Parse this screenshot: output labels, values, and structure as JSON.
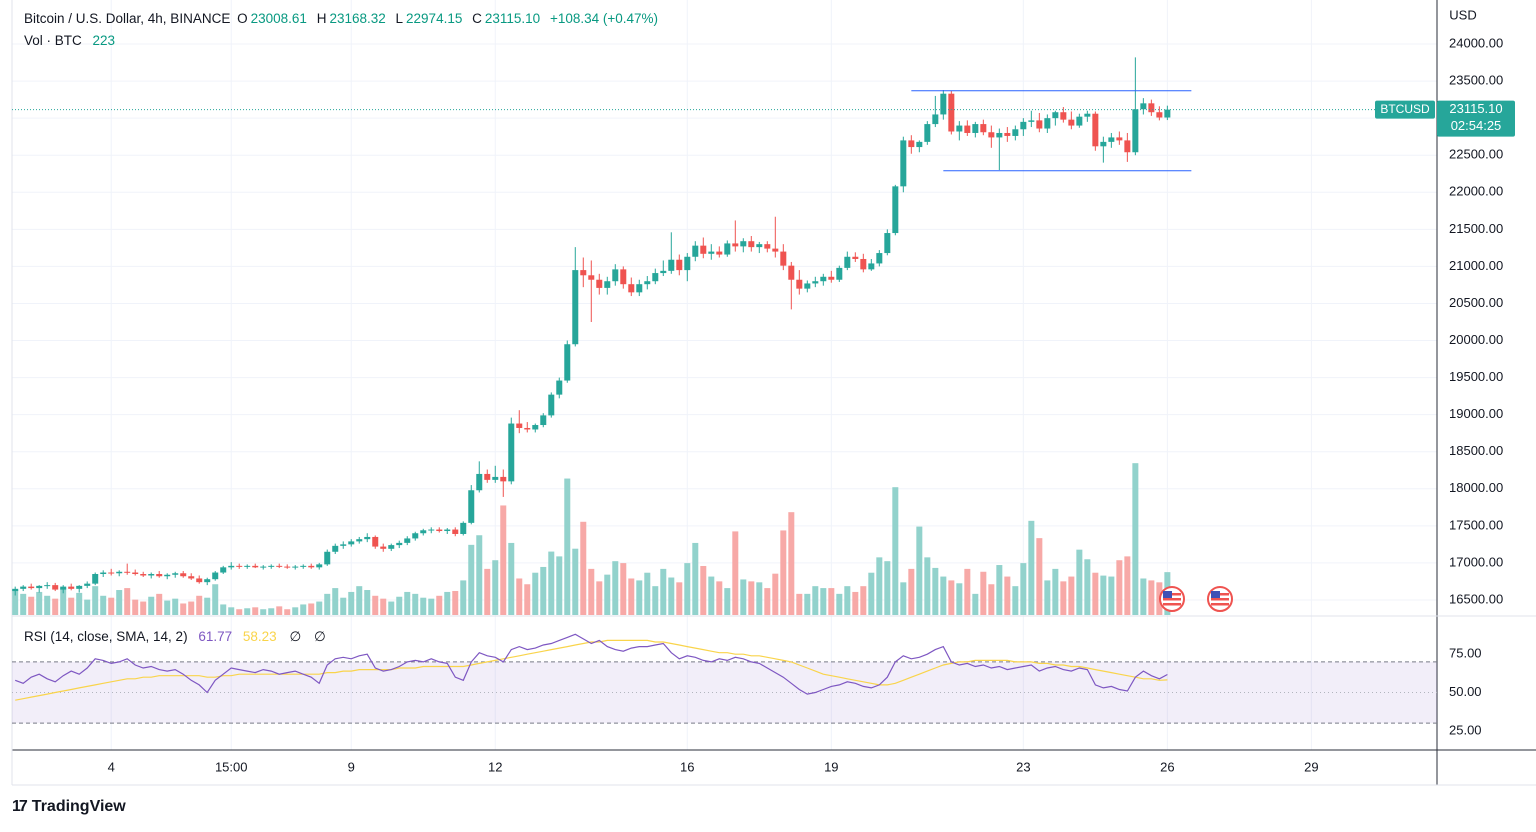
{
  "chart_data": {
    "type": "candlestick",
    "title": "Bitcoin / U.S. Dollar, 4h, BINANCE",
    "ohlc_legend": [
      {
        "label": "O",
        "value": "23008.61"
      },
      {
        "label": "H",
        "value": "23168.32"
      },
      {
        "label": "L",
        "value": "22974.15"
      },
      {
        "label": "C",
        "value": "23115.10"
      }
    ],
    "change": "+108.34 (+0.47%)",
    "currency": "USD",
    "price_tag": {
      "symbol": "BTCUSD",
      "price": "23115.10",
      "countdown": "02:54:25"
    },
    "brand": "TradingView",
    "up_color": "#26a69a",
    "down_color": "#ef5350",
    "volume_up_color": "#92d2cc",
    "volume_down_color": "#f7a9a7",
    "grid": true,
    "xlim": [
      -0.4,
      177.7
    ],
    "xticks": [
      {
        "value": 12,
        "label": "4"
      },
      {
        "value": 27,
        "label": "15:00"
      },
      {
        "value": 42,
        "label": "9"
      },
      {
        "value": 60,
        "label": "12"
      },
      {
        "value": 84,
        "label": "16"
      },
      {
        "value": 102,
        "label": "19"
      },
      {
        "value": 126,
        "label": "23"
      },
      {
        "value": 144,
        "label": "26"
      },
      {
        "value": 162,
        "label": "29"
      }
    ],
    "ylim": [
      16297,
      24594
    ],
    "yticks": [
      {
        "value": 16500,
        "label": "16500.00"
      },
      {
        "value": 17000,
        "label": "17000.00"
      },
      {
        "value": 17500,
        "label": "17500.00"
      },
      {
        "value": 18000,
        "label": "18000.00"
      },
      {
        "value": 18500,
        "label": "18500.00"
      },
      {
        "value": 19000,
        "label": "19000.00"
      },
      {
        "value": 19500,
        "label": "19500.00"
      },
      {
        "value": 20000,
        "label": "20000.00"
      },
      {
        "value": 20500,
        "label": "20500.00"
      },
      {
        "value": 21000,
        "label": "21000.00"
      },
      {
        "value": 21500,
        "label": "21500.00"
      },
      {
        "value": 22000,
        "label": "22000.00"
      },
      {
        "value": 22500,
        "label": "22500.00"
      },
      {
        "value": 23000,
        "label": "23000.00"
      },
      {
        "value": 23500,
        "label": "23500.00"
      },
      {
        "value": 24000,
        "label": "24000.00"
      }
    ],
    "drawings": [
      {
        "price": 23370,
        "from": 112,
        "to": 147,
        "color": "#2962ff"
      },
      {
        "price": 22290,
        "from": 116,
        "to": 147,
        "color": "#2962ff"
      }
    ],
    "candles": [
      [
        16620,
        16680,
        16560,
        16650
      ],
      [
        16650,
        16700,
        16620,
        16680
      ],
      [
        16680,
        16720,
        16640,
        16660
      ],
      [
        16660,
        16700,
        16600,
        16690
      ],
      [
        16690,
        16740,
        16650,
        16700
      ],
      [
        16700,
        16730,
        16620,
        16640
      ],
      [
        16640,
        16700,
        16590,
        16680
      ],
      [
        16680,
        16720,
        16630,
        16650
      ],
      [
        16650,
        16700,
        16600,
        16690
      ],
      [
        16690,
        16750,
        16660,
        16720
      ],
      [
        16720,
        16870,
        16700,
        16850
      ],
      [
        16850,
        16900,
        16810,
        16870
      ],
      [
        16870,
        16920,
        16830,
        16860
      ],
      [
        16860,
        16900,
        16820,
        16880
      ],
      [
        16880,
        16990,
        16840,
        16870
      ],
      [
        16870,
        16910,
        16830,
        16850
      ],
      [
        16850,
        16880,
        16810,
        16830
      ],
      [
        16830,
        16870,
        16790,
        16850
      ],
      [
        16850,
        16890,
        16800,
        16820
      ],
      [
        16820,
        16860,
        16780,
        16840
      ],
      [
        16840,
        16880,
        16800,
        16860
      ],
      [
        16860,
        16890,
        16800,
        16820
      ],
      [
        16820,
        16860,
        16770,
        16790
      ],
      [
        16790,
        16830,
        16720,
        16740
      ],
      [
        16740,
        16800,
        16700,
        16780
      ],
      [
        16780,
        16890,
        16760,
        16870
      ],
      [
        16870,
        16960,
        16850,
        16940
      ],
      [
        16940,
        17010,
        16910,
        16960
      ],
      [
        16960,
        16990,
        16920,
        16950
      ],
      [
        16950,
        16980,
        16920,
        16960
      ],
      [
        16960,
        16990,
        16930,
        16940
      ],
      [
        16940,
        16970,
        16910,
        16950
      ],
      [
        16950,
        16980,
        16920,
        16960
      ],
      [
        16960,
        16990,
        16930,
        16950
      ],
      [
        16950,
        16980,
        16920,
        16940
      ],
      [
        16940,
        16970,
        16910,
        16950
      ],
      [
        16950,
        16980,
        16920,
        16960
      ],
      [
        16960,
        16990,
        16920,
        16940
      ],
      [
        16940,
        17000,
        16910,
        16980
      ],
      [
        16980,
        17180,
        16960,
        17150
      ],
      [
        17150,
        17260,
        17120,
        17230
      ],
      [
        17230,
        17290,
        17190,
        17250
      ],
      [
        17250,
        17320,
        17220,
        17290
      ],
      [
        17290,
        17350,
        17260,
        17320
      ],
      [
        17320,
        17400,
        17280,
        17350
      ],
      [
        17350,
        17370,
        17190,
        17220
      ],
      [
        17220,
        17260,
        17150,
        17190
      ],
      [
        17190,
        17260,
        17160,
        17240
      ],
      [
        17240,
        17300,
        17200,
        17270
      ],
      [
        17270,
        17360,
        17240,
        17330
      ],
      [
        17330,
        17420,
        17300,
        17400
      ],
      [
        17400,
        17460,
        17370,
        17440
      ],
      [
        17440,
        17480,
        17400,
        17450
      ],
      [
        17450,
        17480,
        17410,
        17430
      ],
      [
        17430,
        17470,
        17390,
        17450
      ],
      [
        17450,
        17480,
        17360,
        17390
      ],
      [
        17390,
        17560,
        17370,
        17540
      ],
      [
        17540,
        18050,
        17520,
        17980
      ],
      [
        17980,
        18370,
        17950,
        18200
      ],
      [
        18200,
        18260,
        18080,
        18120
      ],
      [
        18120,
        18310,
        18080,
        18160
      ],
      [
        18160,
        18260,
        17890,
        18100
      ],
      [
        18100,
        18960,
        18060,
        18880
      ],
      [
        18880,
        19060,
        18750,
        18820
      ],
      [
        18820,
        18900,
        18760,
        18800
      ],
      [
        18800,
        18880,
        18760,
        18860
      ],
      [
        18860,
        19020,
        18830,
        18990
      ],
      [
        18990,
        19300,
        18960,
        19270
      ],
      [
        19270,
        19500,
        19220,
        19460
      ],
      [
        19460,
        20000,
        19430,
        19950
      ],
      [
        19950,
        21260,
        19920,
        20950
      ],
      [
        20950,
        21120,
        20720,
        20880
      ],
      [
        20880,
        21080,
        20250,
        20820
      ],
      [
        20820,
        20900,
        20620,
        20710
      ],
      [
        20710,
        20860,
        20620,
        20800
      ],
      [
        20800,
        21030,
        20740,
        20960
      ],
      [
        20960,
        21000,
        20700,
        20760
      ],
      [
        20760,
        20850,
        20600,
        20650
      ],
      [
        20650,
        20820,
        20600,
        20760
      ],
      [
        20760,
        20870,
        20690,
        20800
      ],
      [
        20800,
        20970,
        20760,
        20910
      ],
      [
        20910,
        21080,
        20870,
        20940
      ],
      [
        20940,
        21460,
        20900,
        21090
      ],
      [
        21090,
        21160,
        20880,
        20950
      ],
      [
        20950,
        21180,
        20800,
        21130
      ],
      [
        21130,
        21340,
        21070,
        21280
      ],
      [
        21280,
        21390,
        21110,
        21170
      ],
      [
        21170,
        21300,
        21090,
        21200
      ],
      [
        21200,
        21270,
        21120,
        21160
      ],
      [
        21160,
        21350,
        21130,
        21310
      ],
      [
        21310,
        21620,
        21200,
        21270
      ],
      [
        21270,
        21380,
        21190,
        21340
      ],
      [
        21340,
        21410,
        21200,
        21260
      ],
      [
        21260,
        21330,
        21180,
        21300
      ],
      [
        21300,
        21340,
        21190,
        21240
      ],
      [
        21240,
        21670,
        21120,
        21200
      ],
      [
        21200,
        21300,
        20950,
        21010
      ],
      [
        21010,
        21060,
        20420,
        20820
      ],
      [
        20820,
        20950,
        20620,
        20700
      ],
      [
        20700,
        20810,
        20650,
        20770
      ],
      [
        20770,
        20860,
        20720,
        20800
      ],
      [
        20800,
        20900,
        20740,
        20860
      ],
      [
        20860,
        20940,
        20780,
        20820
      ],
      [
        20820,
        21010,
        20790,
        20980
      ],
      [
        20980,
        21200,
        20950,
        21130
      ],
      [
        21130,
        21190,
        21060,
        21100
      ],
      [
        21100,
        21170,
        20920,
        20960
      ],
      [
        20960,
        21100,
        20940,
        21040
      ],
      [
        21040,
        21220,
        21000,
        21180
      ],
      [
        21180,
        21500,
        21150,
        21450
      ],
      [
        21450,
        22100,
        21420,
        22080
      ],
      [
        22080,
        22750,
        22000,
        22700
      ],
      [
        22700,
        22770,
        22520,
        22610
      ],
      [
        22610,
        22700,
        22540,
        22680
      ],
      [
        22680,
        22960,
        22640,
        22920
      ],
      [
        22920,
        23300,
        22880,
        23050
      ],
      [
        23050,
        23380,
        22980,
        23330
      ],
      [
        23330,
        23370,
        22780,
        22820
      ],
      [
        22820,
        22960,
        22700,
        22900
      ],
      [
        22900,
        22970,
        22760,
        22800
      ],
      [
        22800,
        22950,
        22740,
        22920
      ],
      [
        22920,
        22980,
        22770,
        22810
      ],
      [
        22810,
        22900,
        22600,
        22740
      ],
      [
        22740,
        22860,
        22300,
        22800
      ],
      [
        22800,
        22880,
        22680,
        22760
      ],
      [
        22760,
        22900,
        22700,
        22850
      ],
      [
        22850,
        23000,
        22760,
        22950
      ],
      [
        22950,
        23100,
        22880,
        22970
      ],
      [
        22970,
        23070,
        22810,
        22860
      ],
      [
        22860,
        23050,
        22800,
        23000
      ],
      [
        23000,
        23100,
        22900,
        23080
      ],
      [
        23080,
        23150,
        22940,
        22980
      ],
      [
        22980,
        23090,
        22850,
        22900
      ],
      [
        22900,
        23060,
        22870,
        23020
      ],
      [
        23020,
        23100,
        22950,
        23060
      ],
      [
        23060,
        23090,
        22560,
        22620
      ],
      [
        22620,
        22750,
        22400,
        22680
      ],
      [
        22680,
        22800,
        22600,
        22740
      ],
      [
        22740,
        22820,
        22640,
        22700
      ],
      [
        22700,
        22800,
        22410,
        22540
      ],
      [
        22540,
        23820,
        22500,
        23120
      ],
      [
        23120,
        23270,
        23050,
        23200
      ],
      [
        23200,
        23250,
        23030,
        23080
      ],
      [
        23080,
        23160,
        22970,
        23008.61
      ],
      [
        23008.61,
        23168.32,
        22974.15,
        23115.1
      ]
    ],
    "volume": {
      "name": "Vol · BTC",
      "ylim": [
        0,
        3200
      ],
      "values": [
        130,
        110,
        95,
        120,
        100,
        85,
        140,
        90,
        115,
        80,
        150,
        100,
        90,
        130,
        140,
        80,
        70,
        95,
        110,
        75,
        85,
        60,
        70,
        100,
        90,
        160,
        55,
        40,
        30,
        35,
        40,
        30,
        35,
        45,
        30,
        40,
        55,
        60,
        70,
        110,
        140,
        90,
        120,
        150,
        130,
        100,
        85,
        70,
        95,
        120,
        110,
        90,
        85,
        100,
        120,
        125,
        180,
        365,
        415,
        240,
        285,
        570,
        375,
        190,
        160,
        220,
        250,
        330,
        305,
        710,
        345,
        485,
        240,
        175,
        210,
        280,
        270,
        190,
        180,
        220,
        150,
        240,
        195,
        170,
        270,
        375,
        255,
        200,
        175,
        140,
        435,
        185,
        175,
        170,
        140,
        215,
        440,
        535,
        110,
        110,
        150,
        140,
        140,
        110,
        150,
        120,
        150,
        220,
        300,
        280,
        665,
        170,
        240,
        460,
        300,
        245,
        200,
        180,
        165,
        240,
        110,
        225,
        160,
        260,
        200,
        150,
        270,
        490,
        400,
        180,
        240,
        175,
        200,
        340,
        290,
        220,
        205,
        200,
        285,
        305,
        790,
        190,
        180,
        170,
        223
      ]
    },
    "rsi": {
      "name": "RSI (14, close, SMA, 14, 2)",
      "color": "#7e57c2",
      "sma_color": "#f9d44b",
      "extras": [
        "∅",
        "∅"
      ],
      "ylim": [
        12.5,
        99.3
      ],
      "yticks": [
        {
          "value": 25,
          "label": "25.00"
        },
        {
          "value": 50,
          "label": "50.00"
        },
        {
          "value": 75,
          "label": "75.00"
        }
      ],
      "bands": [
        30,
        70
      ],
      "mid": 50,
      "values": [
        58,
        56,
        60,
        62,
        59,
        57,
        61,
        64,
        62,
        66,
        72,
        71,
        69,
        70,
        72,
        68,
        66,
        67,
        65,
        64,
        65,
        62,
        58,
        55,
        50,
        58,
        62,
        66,
        65,
        64,
        63,
        65,
        64,
        62,
        63,
        64,
        62,
        60,
        56,
        68,
        72,
        73,
        72,
        74,
        75,
        66,
        64,
        65,
        67,
        70,
        71,
        70,
        72,
        70,
        69,
        60,
        58,
        70,
        76,
        74,
        73,
        70,
        78,
        80,
        78,
        79,
        81,
        82,
        84,
        86,
        88,
        85,
        82,
        84,
        80,
        78,
        77,
        79,
        80,
        80,
        81,
        82,
        76,
        72,
        74,
        73,
        71,
        70,
        72,
        71,
        73,
        72,
        70,
        69,
        66,
        63,
        60,
        56,
        52,
        49,
        50,
        52,
        54,
        55,
        57,
        56,
        54,
        53,
        55,
        60,
        70,
        74,
        72,
        73,
        75,
        78,
        80,
        70,
        68,
        69,
        67,
        68,
        66,
        67,
        65,
        66,
        67,
        68,
        64,
        66,
        67,
        65,
        64,
        66,
        65,
        55,
        53,
        54,
        52,
        51,
        60,
        64,
        61,
        59,
        61.77
      ],
      "sma": [
        45,
        46,
        47,
        48,
        49,
        50,
        51,
        52,
        53,
        54,
        55,
        56,
        57,
        58,
        59,
        59,
        60,
        60,
        61,
        61,
        61,
        61,
        61,
        61,
        60,
        60,
        61,
        61,
        62,
        62,
        62,
        62,
        62,
        62,
        62,
        62,
        62,
        62,
        62,
        63,
        63,
        64,
        64,
        65,
        65,
        65,
        65,
        65,
        66,
        66,
        66,
        67,
        67,
        67,
        67,
        67,
        67,
        68,
        69,
        70,
        71,
        72,
        73,
        74,
        75,
        76,
        77,
        78,
        79,
        80,
        81,
        82,
        83,
        83,
        84,
        84,
        84,
        84,
        84,
        84,
        83,
        83,
        82,
        81,
        80,
        79,
        78,
        77,
        76,
        76,
        75,
        75,
        74,
        74,
        73,
        72,
        71,
        70,
        68,
        66,
        64,
        62,
        61,
        60,
        59,
        58,
        57,
        56,
        55,
        55,
        56,
        58,
        60,
        62,
        64,
        66,
        68,
        69,
        70,
        70,
        71,
        71,
        71,
        71,
        71,
        70,
        70,
        70,
        69,
        69,
        68,
        68,
        67,
        67,
        66,
        65,
        64,
        63,
        62,
        61,
        60,
        59,
        59,
        58,
        58.23
      ]
    }
  }
}
